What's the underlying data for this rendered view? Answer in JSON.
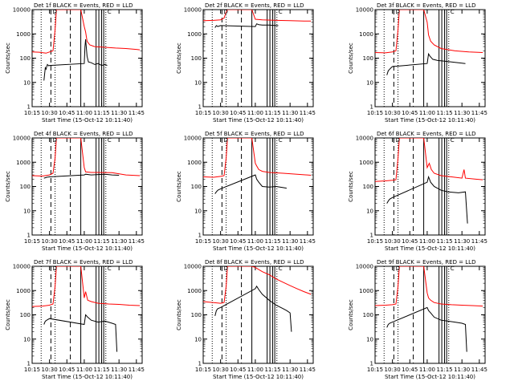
{
  "figure": {
    "start_time_label": "Start Time (15-Oct-12 10:11:40)",
    "ylabel": "Counts/sec",
    "colors": {
      "events": "#000000",
      "lld": "#ff0000",
      "axes": "#000000",
      "background": "#ffffff"
    }
  },
  "chart_data": [
    {
      "type": "line",
      "title": "Det 1f BLACK = Events, RED = LLD",
      "xlabel": "Start Time (15-Oct-12 10:11:40)",
      "ylabel": "Counts/sec",
      "xlim": [
        10.25,
        11.833
      ],
      "ylim": [
        1,
        10000
      ],
      "yscale": "log",
      "xticks": [
        "10:15",
        "10:30",
        "10:45",
        "11:00",
        "11:15",
        "11:30",
        "11:45"
      ],
      "yticks": [
        "1",
        "10",
        "100",
        "1000",
        "10000"
      ],
      "series": [
        {
          "name": "Events",
          "x": [
            10.42,
            10.44,
            10.45,
            10.47,
            10.49,
            10.5,
            11.0,
            11.01,
            11.02,
            11.04,
            11.06,
            11.1,
            11.15,
            11.2,
            11.25,
            11.3,
            11.33
          ],
          "y": [
            12,
            40,
            35,
            55,
            48,
            50,
            60,
            300,
            600,
            120,
            70,
            65,
            55,
            60,
            50,
            55,
            50
          ]
        },
        {
          "name": "LLD",
          "x": [
            10.25,
            10.35,
            10.45,
            10.5,
            10.55,
            10.58,
            10.6,
            10.62,
            10.8,
            10.95,
            11.0,
            11.02,
            11.04,
            11.08,
            11.15,
            11.3,
            11.45,
            11.6,
            11.75,
            11.8
          ],
          "y": [
            180,
            175,
            160,
            180,
            200,
            1500,
            10000,
            10000,
            10000,
            10000,
            2000,
            1200,
            500,
            350,
            300,
            280,
            260,
            250,
            230,
            220
          ]
        }
      ],
      "markers": {
        "dotted": [
          10.38,
          10.58,
          11.31
        ],
        "dashed": [
          10.52,
          10.8
        ],
        "solid": [
          10.95,
          11.17,
          11.21,
          11.25,
          11.28
        ]
      },
      "flags": [
        "D",
        "C"
      ]
    },
    {
      "type": "line",
      "title": "Det 2f BLACK = Events, RED = LLD",
      "xlabel": "Start Time (15-Oct-12 10:11:40)",
      "ylabel": "Counts/sec",
      "xlim": [
        10.25,
        11.833
      ],
      "ylim": [
        1,
        10000
      ],
      "yscale": "log",
      "xticks": [
        "10:15",
        "10:30",
        "10:45",
        "11:00",
        "11:15",
        "11:30",
        "11:45"
      ],
      "yticks": [
        "1",
        "10",
        "100",
        "1000",
        "10000"
      ],
      "series": [
        {
          "name": "Events",
          "x": [
            10.42,
            10.44,
            10.46,
            10.48,
            10.5,
            11.0,
            11.02,
            11.05,
            11.1,
            11.2,
            11.3,
            11.33
          ],
          "y": [
            1800,
            2200,
            2000,
            2100,
            2200,
            2000,
            2600,
            2400,
            2300,
            2300,
            2200,
            2200
          ]
        },
        {
          "name": "LLD",
          "x": [
            10.25,
            10.4,
            10.5,
            10.55,
            10.58,
            10.6,
            10.8,
            10.95,
            11.0,
            11.1,
            11.3,
            11.5,
            11.7,
            11.8
          ],
          "y": [
            3500,
            3600,
            3800,
            4500,
            8000,
            10000,
            10000,
            10000,
            4000,
            3800,
            3600,
            3500,
            3400,
            3400
          ]
        }
      ],
      "markers": {
        "dotted": [
          10.38,
          10.58,
          11.31
        ],
        "dashed": [
          10.52,
          10.8
        ],
        "solid": [
          10.95,
          11.17,
          11.21,
          11.25,
          11.28
        ]
      },
      "flags": [
        "D",
        "C"
      ]
    },
    {
      "type": "line",
      "title": "Det 3f BLACK = Events, RED = LLD",
      "xlabel": "Start Time (15-Oct-12 10:11:40)",
      "ylabel": "Counts/sec",
      "xlim": [
        10.25,
        11.833
      ],
      "ylim": [
        1,
        10000
      ],
      "yscale": "log",
      "xticks": [
        "10:15",
        "10:30",
        "10:45",
        "11:00",
        "11:15",
        "11:30",
        "11:45"
      ],
      "yticks": [
        "1",
        "10",
        "100",
        "1000",
        "10000"
      ],
      "series": [
        {
          "name": "Events",
          "x": [
            10.42,
            10.44,
            10.46,
            10.48,
            10.5,
            11.0,
            11.02,
            11.04,
            11.08,
            11.15,
            11.25,
            11.35,
            11.45,
            11.55
          ],
          "y": [
            20,
            30,
            35,
            40,
            45,
            60,
            150,
            120,
            90,
            80,
            75,
            70,
            65,
            60
          ]
        },
        {
          "name": "LLD",
          "x": [
            10.25,
            10.4,
            10.5,
            10.55,
            10.58,
            10.6,
            10.8,
            10.95,
            11.0,
            11.02,
            11.05,
            11.1,
            11.2,
            11.4,
            11.6,
            11.8
          ],
          "y": [
            170,
            165,
            180,
            200,
            1500,
            10000,
            10000,
            10000,
            3000,
            900,
            500,
            350,
            250,
            200,
            180,
            170
          ]
        }
      ],
      "markers": {
        "dotted": [
          10.38,
          10.58,
          11.31
        ],
        "dashed": [
          10.52,
          10.8
        ],
        "solid": [
          10.95,
          11.17,
          11.21,
          11.25,
          11.28
        ]
      },
      "flags": [
        "D",
        "C"
      ]
    },
    {
      "type": "line",
      "title": "Det 4f BLACK = Events, RED = LLD",
      "xlabel": "Start Time (15-Oct-12 10:11:40)",
      "ylabel": "Counts/sec",
      "xlim": [
        10.25,
        11.833
      ],
      "ylim": [
        1,
        10000
      ],
      "yscale": "log",
      "xticks": [
        "10:15",
        "10:30",
        "10:45",
        "11:00",
        "11:15",
        "11:30",
        "11:45"
      ],
      "yticks": [
        "1",
        "10",
        "100",
        "1000",
        "10000"
      ],
      "series": [
        {
          "name": "Events",
          "x": [
            10.42,
            10.44,
            10.46,
            10.5,
            11.0,
            11.02,
            11.1,
            11.2,
            11.3,
            11.4,
            11.5
          ],
          "y": [
            220,
            230,
            240,
            250,
            300,
            320,
            300,
            310,
            320,
            300,
            290
          ]
        },
        {
          "name": "LLD",
          "x": [
            10.25,
            10.4,
            10.5,
            10.55,
            10.58,
            10.6,
            10.8,
            10.95,
            11.0,
            11.02,
            11.1,
            11.2,
            11.4,
            11.6,
            11.8
          ],
          "y": [
            280,
            270,
            300,
            350,
            1500,
            10000,
            10000,
            10000,
            600,
            400,
            380,
            380,
            370,
            300,
            280
          ]
        }
      ],
      "markers": {
        "dotted": [
          10.38,
          10.58,
          11.31
        ],
        "dashed": [
          10.52,
          10.8
        ],
        "solid": [
          10.95,
          11.17,
          11.21,
          11.25,
          11.28
        ]
      },
      "flags": [
        "D",
        "C"
      ]
    },
    {
      "type": "line",
      "title": "Det 5f BLACK = Events, RED = LLD",
      "xlabel": "Start Time (15-Oct-12 10:11:40)",
      "ylabel": "Counts/sec",
      "xlim": [
        10.25,
        11.833
      ],
      "ylim": [
        1,
        10000
      ],
      "yscale": "log",
      "xticks": [
        "10:15",
        "10:30",
        "10:45",
        "11:00",
        "11:15",
        "11:30",
        "11:45"
      ],
      "yticks": [
        "1",
        "10",
        "100",
        "1000",
        "10000"
      ],
      "series": [
        {
          "name": "Events",
          "x": [
            10.42,
            10.44,
            10.46,
            10.5,
            11.0,
            11.02,
            11.05,
            11.1,
            11.2,
            11.3,
            11.4,
            11.45
          ],
          "y": [
            50,
            60,
            70,
            80,
            300,
            200,
            150,
            100,
            95,
            100,
            90,
            85
          ]
        },
        {
          "name": "LLD",
          "x": [
            10.25,
            10.4,
            10.5,
            10.55,
            10.58,
            10.6,
            10.8,
            10.95,
            11.0,
            11.02,
            11.05,
            11.1,
            11.2,
            11.4,
            11.6,
            11.8
          ],
          "y": [
            250,
            240,
            260,
            280,
            1500,
            10000,
            10000,
            10000,
            900,
            700,
            500,
            420,
            380,
            350,
            320,
            290
          ]
        }
      ],
      "markers": {
        "dotted": [
          10.38,
          10.58,
          11.31
        ],
        "dashed": [
          10.52,
          10.8
        ],
        "solid": [
          10.95,
          11.17,
          11.21,
          11.25,
          11.28
        ]
      },
      "flags": [
        "D",
        "C"
      ]
    },
    {
      "type": "line",
      "title": "Det 6f BLACK = Events, RED = LLD",
      "xlabel": "Start Time (15-Oct-12 10:11:40)",
      "ylabel": "Counts/sec",
      "xlim": [
        10.25,
        11.833
      ],
      "ylim": [
        1,
        10000
      ],
      "yscale": "log",
      "xticks": [
        "10:15",
        "10:30",
        "10:45",
        "11:00",
        "11:15",
        "11:30",
        "11:45"
      ],
      "yticks": [
        "1",
        "10",
        "100",
        "1000",
        "10000"
      ],
      "series": [
        {
          "name": "Events",
          "x": [
            10.42,
            10.44,
            10.46,
            10.5,
            11.0,
            11.02,
            11.05,
            11.1,
            11.2,
            11.3,
            11.45,
            11.55,
            11.58
          ],
          "y": [
            20,
            25,
            30,
            35,
            150,
            250,
            150,
            100,
            70,
            60,
            55,
            60,
            3
          ]
        },
        {
          "name": "LLD",
          "x": [
            10.25,
            10.4,
            10.5,
            10.55,
            10.58,
            10.6,
            10.8,
            10.95,
            11.0,
            11.03,
            11.06,
            11.1,
            11.2,
            11.35,
            11.5,
            11.53,
            11.55,
            11.7,
            11.8
          ],
          "y": [
            160,
            170,
            180,
            190,
            1500,
            10000,
            10000,
            10000,
            600,
            900,
            500,
            350,
            280,
            250,
            220,
            500,
            220,
            200,
            190
          ]
        }
      ],
      "markers": {
        "dotted": [
          10.38,
          10.58,
          11.31
        ],
        "dashed": [
          10.52,
          10.8
        ],
        "solid": [
          10.95,
          11.17,
          11.21,
          11.25,
          11.28
        ]
      },
      "flags": [
        "D",
        "C"
      ]
    },
    {
      "type": "line",
      "title": "Det 7f BLACK = Events, RED = LLD",
      "xlabel": "Start Time (15-Oct-12 10:11:40)",
      "ylabel": "Counts/sec",
      "xlim": [
        10.25,
        11.833
      ],
      "ylim": [
        1,
        10000
      ],
      "yscale": "log",
      "xticks": [
        "10:15",
        "10:30",
        "10:45",
        "11:00",
        "11:15",
        "11:30",
        "11:45"
      ],
      "yticks": [
        "1",
        "10",
        "100",
        "1000",
        "10000"
      ],
      "series": [
        {
          "name": "Events",
          "x": [
            10.42,
            10.44,
            10.46,
            10.5,
            11.0,
            11.02,
            11.05,
            11.1,
            11.2,
            11.3,
            11.4,
            11.45,
            11.47
          ],
          "y": [
            40,
            55,
            60,
            70,
            40,
            100,
            80,
            60,
            50,
            55,
            45,
            40,
            3
          ]
        },
        {
          "name": "LLD",
          "x": [
            10.25,
            10.4,
            10.5,
            10.55,
            10.58,
            10.6,
            10.8,
            10.95,
            11.0,
            11.02,
            11.05,
            11.1,
            11.2,
            11.35,
            11.5,
            11.65,
            11.8
          ],
          "y": [
            220,
            230,
            250,
            280,
            1500,
            10000,
            10000,
            10000,
            500,
            900,
            400,
            350,
            300,
            280,
            270,
            250,
            240
          ]
        }
      ],
      "markers": {
        "dotted": [
          10.38,
          10.58,
          11.31
        ],
        "dashed": [
          10.52,
          10.8
        ],
        "solid": [
          10.95,
          11.17,
          11.21,
          11.25,
          11.28
        ]
      },
      "flags": [
        "D",
        "C"
      ]
    },
    {
      "type": "line",
      "title": "Det 8f BLACK = Events, RED = LLD",
      "xlabel": "Start Time (15-Oct-12 10:11:40)",
      "ylabel": "Counts/sec",
      "xlim": [
        10.25,
        11.833
      ],
      "ylim": [
        1,
        10000
      ],
      "yscale": "log",
      "xticks": [
        "10:15",
        "10:30",
        "10:45",
        "11:00",
        "11:15",
        "11:30",
        "11:45"
      ],
      "yticks": [
        "1",
        "10",
        "100",
        "1000",
        "10000"
      ],
      "series": [
        {
          "name": "Events",
          "x": [
            10.42,
            10.44,
            10.46,
            10.5,
            11.0,
            11.02,
            11.05,
            11.1,
            11.2,
            11.3,
            11.4,
            11.45,
            11.5,
            11.52
          ],
          "y": [
            90,
            150,
            180,
            200,
            1200,
            1500,
            1100,
            700,
            400,
            250,
            180,
            150,
            120,
            20
          ]
        },
        {
          "name": "LLD",
          "x": [
            10.25,
            10.4,
            10.5,
            10.55,
            10.58,
            10.6,
            10.8,
            10.95,
            11.0,
            11.1,
            11.2,
            11.3,
            11.4,
            11.5,
            11.6,
            11.7,
            11.8
          ],
          "y": [
            350,
            320,
            300,
            320,
            1500,
            10000,
            10000,
            10000,
            9000,
            6000,
            4500,
            3000,
            2200,
            1600,
            1200,
            900,
            700
          ]
        }
      ],
      "markers": {
        "dotted": [
          10.38,
          10.58,
          11.31
        ],
        "dashed": [
          10.52,
          10.8
        ],
        "solid": [
          10.95,
          11.17,
          11.21,
          11.25,
          11.28
        ]
      },
      "flags": [
        "D",
        "C"
      ]
    },
    {
      "type": "line",
      "title": "Det 9f BLACK = Events, RED = LLD",
      "xlabel": "Start Time (15-Oct-12 10:11:40)",
      "ylabel": "Counts/sec",
      "xlim": [
        10.25,
        11.833
      ],
      "ylim": [
        1,
        10000
      ],
      "yscale": "log",
      "xticks": [
        "10:15",
        "10:30",
        "10:45",
        "11:00",
        "11:15",
        "11:30",
        "11:45"
      ],
      "yticks": [
        "1",
        "10",
        "100",
        "1000",
        "10000"
      ],
      "series": [
        {
          "name": "Events",
          "x": [
            10.42,
            10.44,
            10.46,
            10.5,
            11.0,
            11.02,
            11.05,
            11.1,
            11.2,
            11.3,
            11.4,
            11.5,
            11.55,
            11.57
          ],
          "y": [
            30,
            40,
            45,
            50,
            200,
            150,
            120,
            80,
            60,
            55,
            50,
            45,
            40,
            3
          ]
        },
        {
          "name": "LLD",
          "x": [
            10.25,
            10.4,
            10.5,
            10.55,
            10.58,
            10.6,
            10.8,
            10.95,
            11.0,
            11.02,
            11.05,
            11.1,
            11.2,
            11.35,
            11.5,
            11.65,
            11.8
          ],
          "y": [
            240,
            250,
            260,
            280,
            1500,
            10000,
            10000,
            10000,
            800,
            500,
            400,
            320,
            280,
            260,
            250,
            240,
            230
          ]
        }
      ],
      "markers": {
        "dotted": [
          10.38,
          10.58,
          11.31
        ],
        "dashed": [
          10.52,
          10.8
        ],
        "solid": [
          10.95,
          11.17,
          11.21,
          11.25,
          11.28
        ]
      },
      "flags": [
        "D",
        "C"
      ]
    }
  ]
}
